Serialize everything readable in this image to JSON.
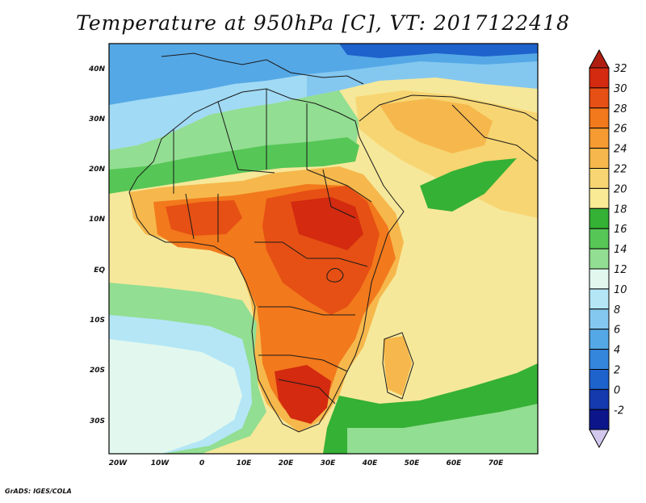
{
  "title": "Temperature at 950hPa [C], VT: 2017122418",
  "credit": "GrADS: IGES/COLA",
  "map": {
    "lat_labels": [
      "40N",
      "30N",
      "20N",
      "10N",
      "EQ",
      "10S",
      "20S",
      "30S"
    ],
    "lon_labels": [
      "20W",
      "10W",
      "0",
      "10E",
      "20E",
      "30E",
      "40E",
      "50E",
      "60E",
      "70E"
    ],
    "ocean_color": "#f6e89a"
  },
  "colorbar": {
    "labels": [
      "32",
      "30",
      "28",
      "26",
      "24",
      "22",
      "20",
      "18",
      "16",
      "14",
      "12",
      "10",
      "8",
      "6",
      "4",
      "2",
      "0",
      "-2"
    ],
    "colors": [
      "#d32a10",
      "#e65014",
      "#f2791c",
      "#f59b32",
      "#f6b84c",
      "#f7d572",
      "#f9ea96",
      "#35b135",
      "#56c656",
      "#92de92",
      "#e2f8ee",
      "#b4e6f6",
      "#84c8f0",
      "#55a8e6",
      "#3486dc",
      "#1e62cc",
      "#143aae",
      "#0c168a"
    ],
    "top_cap_color": "#b01e12",
    "bottom_cap_color": "#d2c8ee"
  }
}
